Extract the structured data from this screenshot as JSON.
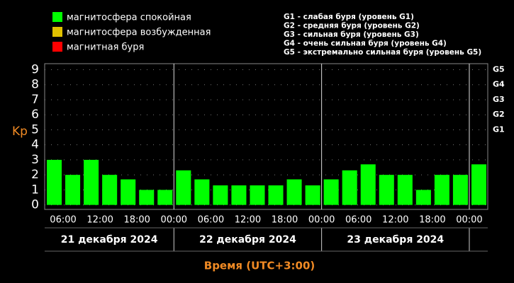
{
  "chart_data": {
    "type": "bar",
    "legend": [
      {
        "name": "магнитосфера спокойная",
        "color": "#00ff00"
      },
      {
        "name": "магнитосфера возбужденная",
        "color": "#e0c000"
      },
      {
        "name": "магнитная буря",
        "color": "#ff0000"
      }
    ],
    "storm_legend": [
      "G1 - слабая буря (уровень G1)",
      "G2 - средняя буря (уровень G2)",
      "G3 - сильная буря (уровень G3)",
      "G4 - очень сильная буря (уровень G4)",
      "G5 - экстремально сильная буря (уровень G5)"
    ],
    "y_label": "Kp",
    "x_label": "Время (UTC+3:00)",
    "categories": [
      null,
      null,
      null,
      null,
      null,
      null,
      null,
      null,
      null,
      null,
      null,
      null,
      null,
      null,
      null,
      null,
      null,
      null,
      null,
      null,
      null,
      null,
      null,
      null
    ],
    "values": [
      3,
      2,
      3,
      2,
      1.7,
      1,
      1,
      2.3,
      1.7,
      1.3,
      1.3,
      1.3,
      1.3,
      1.7,
      1.3,
      1.7,
      2.3,
      2.7,
      2,
      2,
      1,
      2,
      2,
      2.7
    ],
    "color": "#00ff00",
    "ylim": [
      -0.3,
      9.4
    ],
    "yticks": [
      0,
      1,
      2,
      3,
      4,
      5,
      6,
      7,
      8,
      9
    ],
    "y2ticks": [
      {
        "value": 5,
        "label": "G1"
      },
      {
        "value": 6,
        "label": "G2"
      },
      {
        "value": 7,
        "label": "G3"
      },
      {
        "value": 8,
        "label": "G4"
      },
      {
        "value": 9,
        "label": "G5"
      }
    ],
    "xtick_labels": [
      "06:00",
      "12:00",
      "18:00",
      "00:00",
      "06:00",
      "12:00",
      "18:00",
      "00:00",
      "06:00",
      "12:00",
      "18:00",
      "00:00"
    ],
    "date_labels": [
      "21 декабря 2024",
      "22 декабря 2024",
      "23 декабря 2024"
    ],
    "grid": true
  }
}
